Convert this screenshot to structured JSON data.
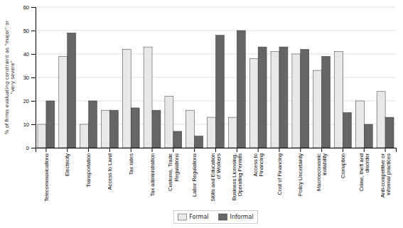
{
  "chart_data": {
    "type": "bar",
    "categories": [
      "Telecommunications",
      "Electricity",
      "Transportation",
      "Access to Land",
      "Tax rates",
      "Tax administration",
      "Customs, Trade\nRegulations",
      "Labor Regulations",
      "Skills and Education\nof Workers",
      "Business Licensing,\nOperating Permits",
      "Access to\nFinancing",
      "Cost of Financing",
      "Policy Uncertainty",
      "Macroeconomic\ninstability",
      "Corruption",
      "Crime, theft and\ndisorder",
      "Anti-competitive or\ninformal practices"
    ],
    "series": [
      {
        "name": "Formal",
        "color": "#e8e8e8",
        "values": [
          10,
          39,
          10,
          16,
          42,
          43,
          22,
          16,
          13,
          13,
          38,
          41,
          40,
          33,
          41,
          20,
          24
        ]
      },
      {
        "name": "Informal",
        "color": "#666666",
        "values": [
          20,
          49,
          20,
          16,
          17,
          16,
          7,
          5,
          48,
          50,
          43,
          43,
          42,
          39,
          15,
          10,
          13
        ]
      }
    ],
    "ylabel": "% of firms evaluating constraint as \"major\" or\n\"very severe\"",
    "ylim": [
      0,
      60
    ],
    "yticks": [
      0,
      10,
      20,
      30,
      40,
      50,
      60
    ],
    "grid": true,
    "legend": "bottom"
  }
}
